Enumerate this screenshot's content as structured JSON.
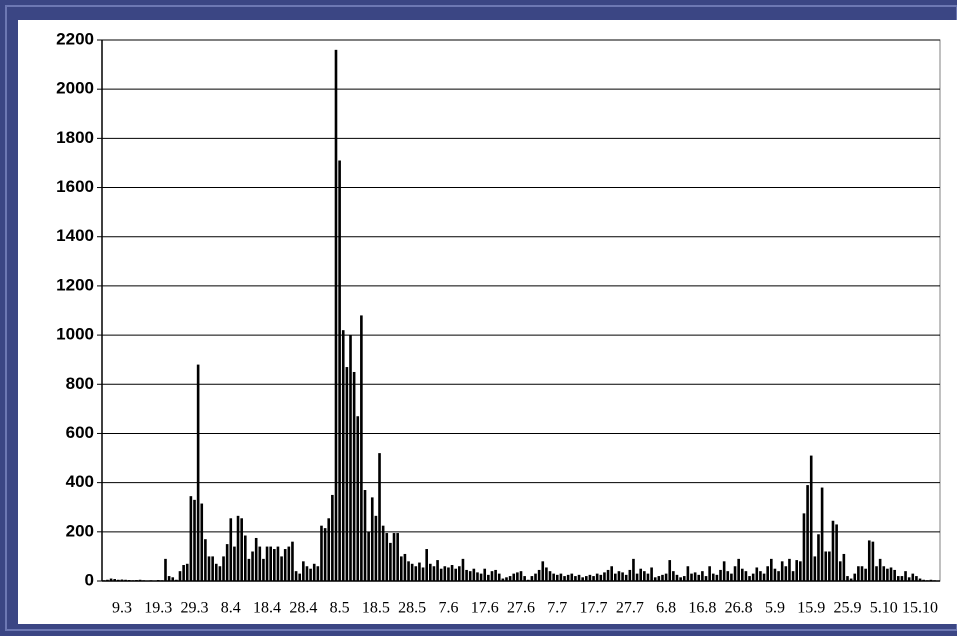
{
  "chart_data": {
    "type": "bar",
    "categories": [
      null,
      null,
      null,
      null,
      null,
      "9.3",
      null,
      null,
      null,
      null,
      null,
      null,
      null,
      null,
      null,
      "19.3",
      null,
      null,
      null,
      null,
      null,
      null,
      null,
      null,
      null,
      "29.3",
      null,
      null,
      null,
      null,
      null,
      null,
      null,
      null,
      null,
      "8.4",
      null,
      null,
      null,
      null,
      null,
      null,
      null,
      null,
      null,
      "18.4",
      null,
      null,
      null,
      null,
      null,
      null,
      null,
      null,
      null,
      "28.4",
      null,
      null,
      null,
      null,
      null,
      null,
      null,
      null,
      null,
      "8.5",
      null,
      null,
      null,
      null,
      null,
      null,
      null,
      null,
      null,
      "18.5",
      null,
      null,
      null,
      null,
      null,
      null,
      null,
      null,
      null,
      "28.5",
      null,
      null,
      null,
      null,
      null,
      null,
      null,
      null,
      null,
      "7.6",
      null,
      null,
      null,
      null,
      null,
      null,
      null,
      null,
      null,
      "17.6",
      null,
      null,
      null,
      null,
      null,
      null,
      null,
      null,
      null,
      "27.6",
      null,
      null,
      null,
      null,
      null,
      null,
      null,
      null,
      null,
      "7.7",
      null,
      null,
      null,
      null,
      null,
      null,
      null,
      null,
      null,
      "17.7",
      null,
      null,
      null,
      null,
      null,
      null,
      null,
      null,
      null,
      "27.7",
      null,
      null,
      null,
      null,
      null,
      null,
      null,
      null,
      null,
      "6.8",
      null,
      null,
      null,
      null,
      null,
      null,
      null,
      null,
      null,
      "16.8",
      null,
      null,
      null,
      null,
      null,
      null,
      null,
      null,
      null,
      "26.8",
      null,
      null,
      null,
      null,
      null,
      null,
      null,
      null,
      null,
      "5.9",
      null,
      null,
      null,
      null,
      null,
      null,
      null,
      null,
      null,
      "15.9",
      null,
      null,
      null,
      null,
      null,
      null,
      null,
      null,
      null,
      "25.9",
      null,
      null,
      null,
      null,
      null,
      null,
      null,
      null,
      null,
      "5.10",
      null,
      null,
      null,
      null,
      null,
      null,
      null,
      null,
      null,
      "15.10",
      null,
      null,
      null,
      null,
      null
    ],
    "values": [
      3,
      5,
      10,
      8,
      5,
      6,
      5,
      4,
      3,
      4,
      5,
      3,
      2,
      3,
      2,
      4,
      3,
      90,
      20,
      15,
      5,
      40,
      65,
      70,
      345,
      330,
      880,
      315,
      170,
      100,
      100,
      70,
      60,
      100,
      150,
      255,
      140,
      265,
      255,
      185,
      90,
      120,
      175,
      140,
      90,
      140,
      140,
      130,
      140,
      100,
      130,
      140,
      160,
      40,
      30,
      80,
      60,
      50,
      70,
      60,
      225,
      215,
      255,
      350,
      2160,
      1710,
      1020,
      870,
      1000,
      850,
      670,
      1080,
      370,
      200,
      340,
      265,
      520,
      225,
      195,
      155,
      195,
      195,
      100,
      110,
      80,
      70,
      60,
      75,
      55,
      130,
      70,
      60,
      85,
      50,
      60,
      55,
      65,
      50,
      60,
      90,
      45,
      40,
      50,
      35,
      30,
      50,
      25,
      40,
      45,
      30,
      10,
      15,
      20,
      30,
      35,
      40,
      20,
      5,
      20,
      30,
      45,
      80,
      55,
      40,
      30,
      25,
      30,
      20,
      25,
      30,
      20,
      25,
      15,
      20,
      25,
      20,
      30,
      25,
      35,
      45,
      60,
      30,
      40,
      35,
      25,
      45,
      90,
      30,
      50,
      40,
      30,
      55,
      15,
      20,
      25,
      30,
      85,
      40,
      25,
      15,
      20,
      60,
      30,
      35,
      25,
      40,
      20,
      60,
      30,
      25,
      45,
      80,
      40,
      30,
      60,
      90,
      50,
      40,
      20,
      30,
      55,
      40,
      30,
      60,
      90,
      50,
      40,
      80,
      60,
      90,
      40,
      85,
      80,
      275,
      390,
      510,
      100,
      190,
      380,
      120,
      120,
      245,
      230,
      80,
      110,
      20,
      10,
      30,
      60,
      60,
      50,
      165,
      160,
      60,
      90,
      60,
      50,
      55,
      45,
      20,
      20,
      40,
      15,
      30,
      20,
      10,
      5,
      3,
      5,
      3,
      2
    ],
    "color": "#000000",
    "ylim": [
      0,
      2200
    ],
    "yticks": [
      0,
      200,
      400,
      600,
      800,
      1000,
      1200,
      1400,
      1600,
      1800,
      2000,
      2200
    ],
    "grid": true
  }
}
